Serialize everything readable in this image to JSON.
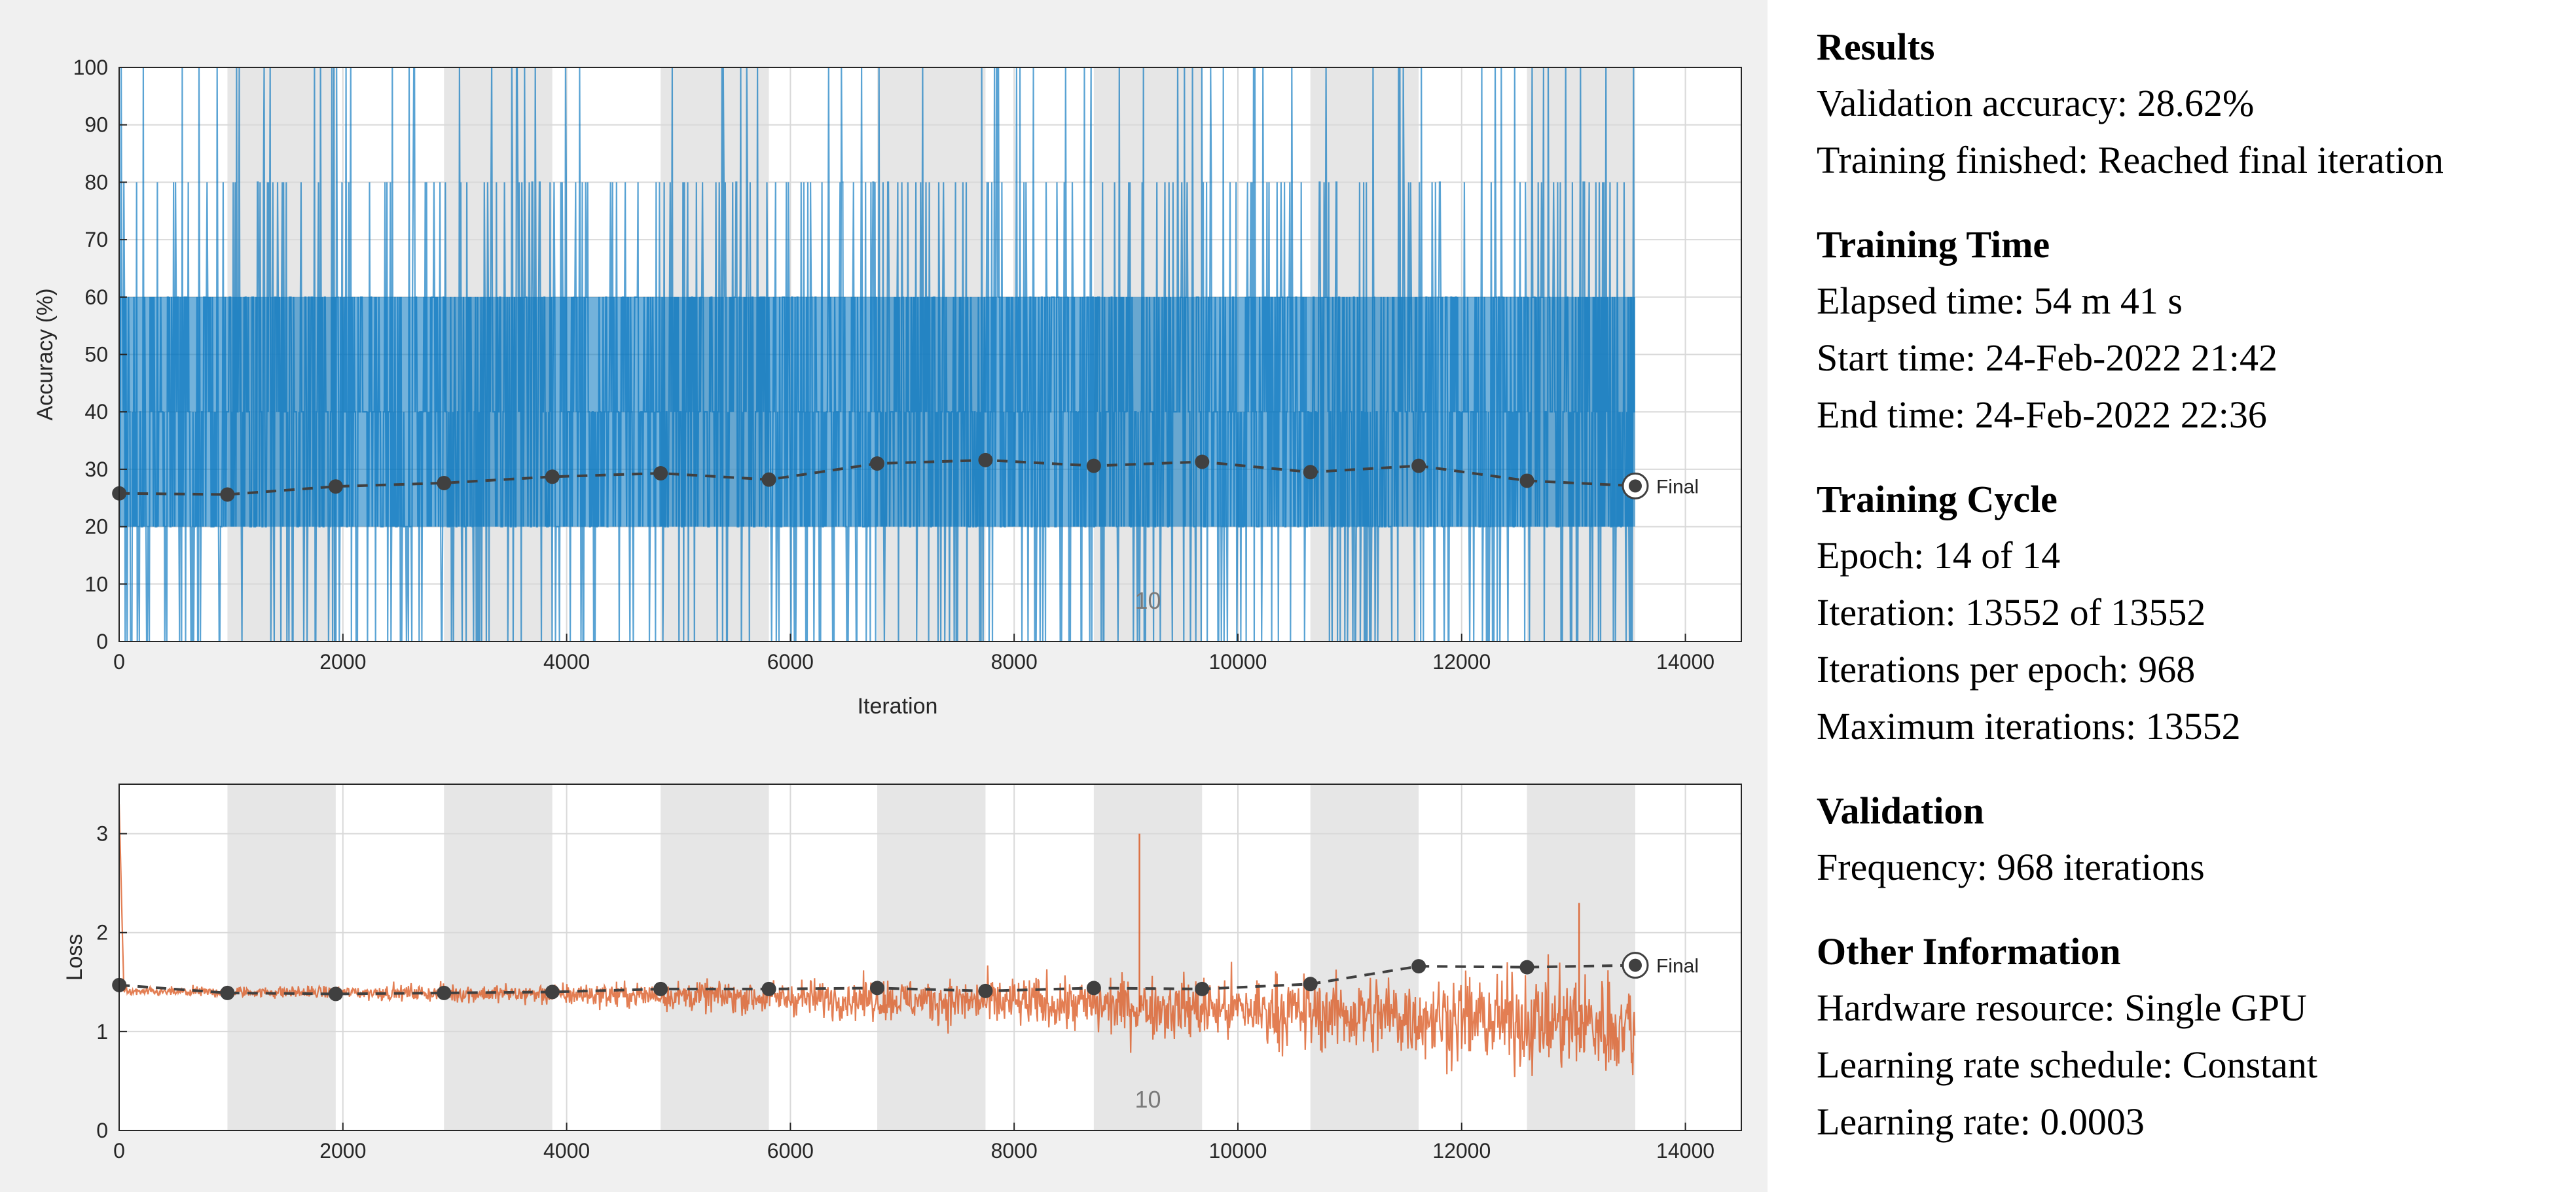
{
  "colors": {
    "accuracy_series": "#0072bd",
    "loss_series": "#d95319",
    "validation": "#404040",
    "epoch_band_alt": "#e6e6e6",
    "panel_background": "#f0f0f0"
  },
  "info": {
    "sections": [
      {
        "heading": "Results",
        "lines": [
          "Validation accuracy: 28.62%",
          "Training finished: Reached final iteration"
        ]
      },
      {
        "heading": "Training Time",
        "lines": [
          "Elapsed time: 54 m 41 s",
          "Start time: 24-Feb-2022 21:42",
          "End time: 24-Feb-2022 22:36"
        ]
      },
      {
        "heading": "Training Cycle",
        "lines": [
          "Epoch: 14 of 14",
          "Iteration: 13552 of 13552",
          "Iterations per epoch: 968",
          "Maximum iterations: 13552"
        ]
      },
      {
        "heading": "Validation",
        "lines": [
          "Frequency: 968 iterations"
        ]
      },
      {
        "heading": "Other Information",
        "lines": [
          "Hardware resource: Single GPU",
          "Learning rate schedule: Constant",
          "Learning rate: 0.0003"
        ]
      }
    ]
  },
  "chart_data": [
    {
      "type": "line",
      "ylabel": "Accuracy (%)",
      "xlabel": "Iteration",
      "xlim": [
        0,
        14500
      ],
      "ylim": [
        0,
        100
      ],
      "xticks": [
        0,
        2000,
        4000,
        6000,
        8000,
        10000,
        12000,
        14000
      ],
      "yticks": [
        0,
        10,
        20,
        30,
        40,
        50,
        60,
        70,
        80,
        90,
        100
      ],
      "grid": true,
      "epoch_bands": {
        "iterations_per_epoch": 968,
        "epochs": 14
      },
      "epoch_label": "10",
      "final_label": "Final",
      "training_series": {
        "max_iteration": 13552,
        "levels": [
          0,
          20,
          40,
          60,
          80,
          100
        ],
        "envelope_typical": [
          20,
          60
        ],
        "envelope_frequent": [
          20,
          80
        ]
      },
      "validation_series": {
        "x": [
          1,
          968,
          1936,
          2904,
          3872,
          4840,
          5808,
          6776,
          7744,
          8712,
          9680,
          10648,
          11616,
          12584,
          13552
        ],
        "y": [
          25.8,
          25.6,
          27.0,
          27.6,
          28.7,
          29.3,
          28.2,
          31.0,
          31.6,
          30.6,
          31.3,
          29.5,
          30.6,
          28.0,
          27.1
        ]
      }
    },
    {
      "type": "line",
      "ylabel": "Loss",
      "xlabel": "",
      "xlim": [
        0,
        14500
      ],
      "ylim": [
        0,
        3.5
      ],
      "xticks": [
        0,
        2000,
        4000,
        6000,
        8000,
        10000,
        12000,
        14000
      ],
      "yticks": [
        0,
        1,
        2,
        3
      ],
      "grid": true,
      "epoch_bands": {
        "iterations_per_epoch": 968,
        "epochs": 14
      },
      "epoch_label": "10",
      "final_label": "Final",
      "training_series": {
        "max_iteration": 13552,
        "start_value": 3.3,
        "mean_start": 1.4,
        "mean_end": 1.05,
        "spread_start": 0.06,
        "spread_end": 0.7,
        "spikes": [
          [
            9120,
            3.0
          ],
          [
            13050,
            2.3
          ]
        ]
      },
      "validation_series": {
        "x": [
          1,
          968,
          1936,
          2904,
          3872,
          4840,
          5808,
          6776,
          7744,
          8712,
          9680,
          10648,
          11616,
          12584,
          13552
        ],
        "y": [
          1.47,
          1.39,
          1.38,
          1.39,
          1.4,
          1.43,
          1.43,
          1.44,
          1.41,
          1.44,
          1.43,
          1.48,
          1.66,
          1.65,
          1.67
        ]
      }
    }
  ]
}
